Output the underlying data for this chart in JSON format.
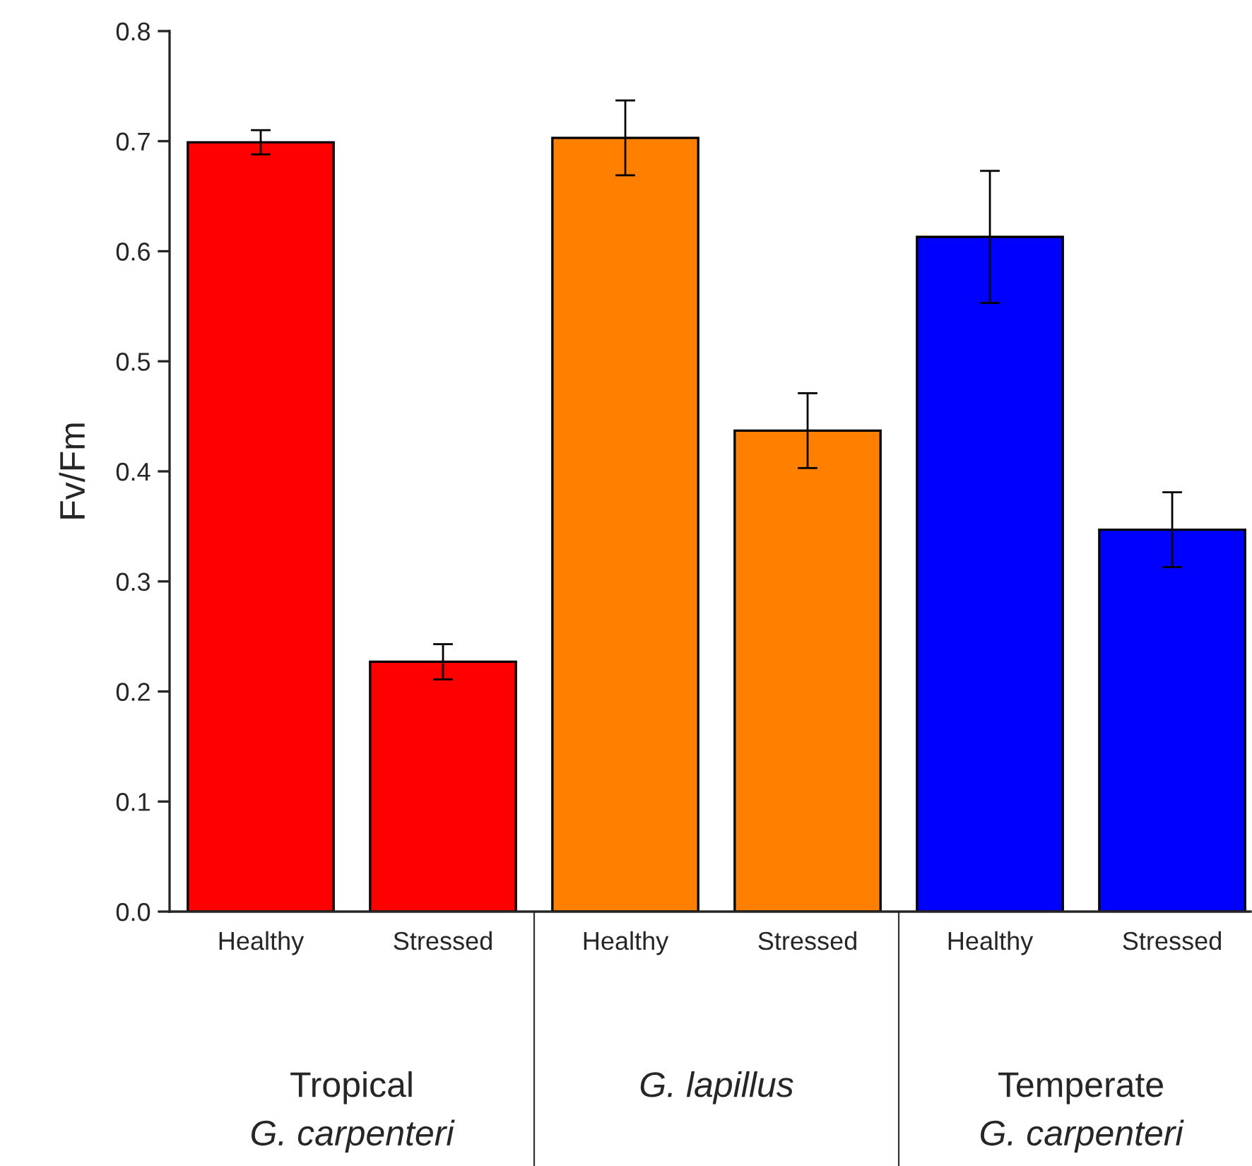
{
  "chart_data": {
    "type": "bar",
    "ylabel": "Fv/Fm",
    "categories": [
      "Healthy",
      "Stressed",
      "Healthy",
      "Stressed",
      "Healthy",
      "Stressed"
    ],
    "values": [
      0.699,
      0.227,
      0.703,
      0.437,
      0.613,
      0.347
    ],
    "errors": [
      0.011,
      0.016,
      0.034,
      0.034,
      0.06,
      0.034
    ],
    "colors": [
      "#ff0000",
      "#ff0000",
      "#ff7f00",
      "#ff7f00",
      "#0000ff",
      "#0000ff"
    ],
    "ylim": [
      0,
      0.8
    ],
    "yticks": [
      {
        "value": 0,
        "label": "0.0"
      },
      {
        "value": 0.1,
        "label": "0.1"
      },
      {
        "value": 0.2,
        "label": "0.2"
      },
      {
        "value": 0.3,
        "label": "0.3"
      },
      {
        "value": 0.4,
        "label": "0.4"
      },
      {
        "value": 0.5,
        "label": "0.5"
      },
      {
        "value": 0.6,
        "label": "0.6"
      },
      {
        "value": 0.7,
        "label": "0.7"
      },
      {
        "value": 0.8,
        "label": "0.8"
      }
    ],
    "annotations": [
      "Tropical\nG. carpenteri",
      "G. lapillus",
      "Temperate\nG. carpenteri"
    ],
    "grid": false,
    "legend": false
  }
}
